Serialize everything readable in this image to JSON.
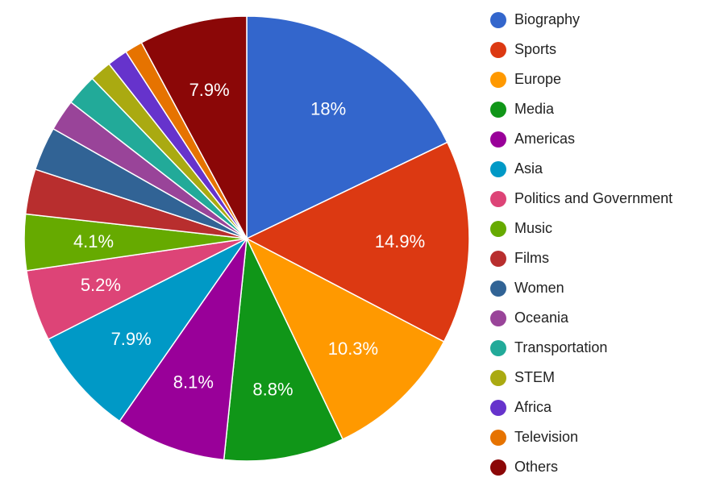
{
  "chart_data": {
    "type": "pie",
    "title": "",
    "slices": [
      {
        "label": "Biography",
        "value": 18.0,
        "display": "18%",
        "color": "#3366cc"
      },
      {
        "label": "Sports",
        "value": 14.9,
        "display": "14.9%",
        "color": "#dc3912"
      },
      {
        "label": "Europe",
        "value": 10.3,
        "display": "10.3%",
        "color": "#ff9900"
      },
      {
        "label": "Media",
        "value": 8.8,
        "display": "8.8%",
        "color": "#109618"
      },
      {
        "label": "Americas",
        "value": 8.1,
        "display": "8.1%",
        "color": "#990099"
      },
      {
        "label": "Asia",
        "value": 7.9,
        "display": "7.9%",
        "color": "#0099c6"
      },
      {
        "label": "Politics and Government",
        "value": 5.2,
        "display": "5.2%",
        "color": "#dd4477"
      },
      {
        "label": "Music",
        "value": 4.1,
        "display": "4.1%",
        "color": "#66aa00"
      },
      {
        "label": "Films",
        "value": 3.3,
        "display": "",
        "color": "#b82e2e"
      },
      {
        "label": "Women",
        "value": 3.2,
        "display": "",
        "color": "#316395"
      },
      {
        "label": "Oceania",
        "value": 2.3,
        "display": "",
        "color": "#994499"
      },
      {
        "label": "Transportation",
        "value": 2.3,
        "display": "",
        "color": "#22aa99"
      },
      {
        "label": "STEM",
        "value": 1.6,
        "display": "",
        "color": "#aaaa11"
      },
      {
        "label": "Africa",
        "value": 1.5,
        "display": "",
        "color": "#6633cc"
      },
      {
        "label": "Television",
        "value": 1.3,
        "display": "",
        "color": "#e67300"
      },
      {
        "label": "Others",
        "value": 7.9,
        "display": "7.9%",
        "color": "#8b0707"
      }
    ],
    "legend_position": "right",
    "slice_border_color": "#ffffff"
  }
}
